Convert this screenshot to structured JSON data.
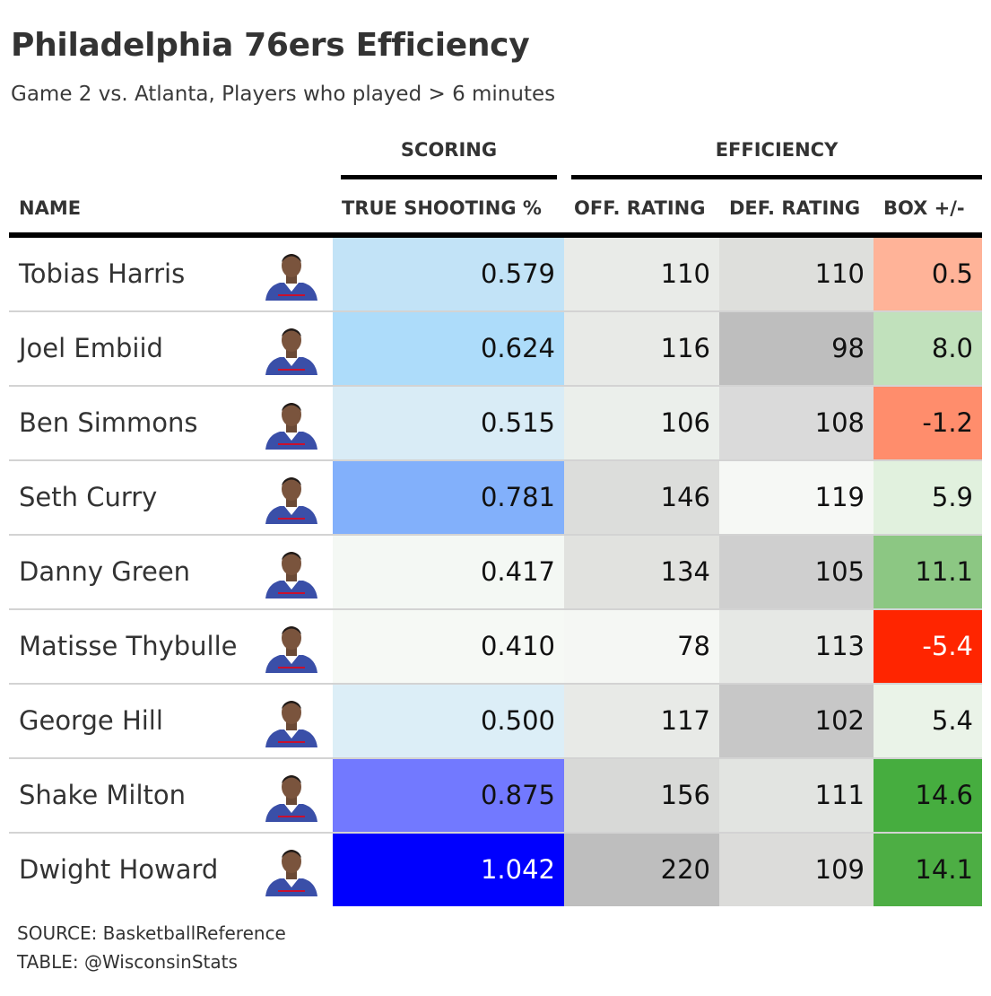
{
  "title": "Philadelphia 76ers Efficiency",
  "subtitle": "Game 2 vs. Atlanta, Players who played > 6 minutes",
  "spanners": {
    "scoring": "SCORING",
    "efficiency": "EFFICIENCY"
  },
  "columns": {
    "name": "NAME",
    "ts": "TRUE SHOOTING %",
    "off": "OFF. RATING",
    "def": "DEF. RATING",
    "box": "BOX +/-"
  },
  "source": {
    "line1": "SOURCE: BasketballReference",
    "line2": "TABLE: @WisconsinStats"
  },
  "chart_data": {
    "type": "table",
    "title": "Philadelphia 76ers Efficiency",
    "subtitle": "Game 2 vs. Atlanta, Players who played > 6 minutes",
    "columns": [
      "NAME",
      "TRUE SHOOTING %",
      "OFF. RATING",
      "DEF. RATING",
      "BOX +/-"
    ],
    "column_groups": [
      {
        "label": "SCORING",
        "columns": [
          "TRUE SHOOTING %"
        ]
      },
      {
        "label": "EFFICIENCY",
        "columns": [
          "OFF. RATING",
          "DEF. RATING",
          "BOX +/-"
        ]
      }
    ],
    "rows": [
      {
        "name": "Tobias Harris",
        "ts": "0.579",
        "off": "110",
        "def": "110",
        "box": "0.5",
        "colors": {
          "ts": "#c2e3f7",
          "off": "#e9ebe8",
          "def": "#dedfdc",
          "box": "#ffb398"
        }
      },
      {
        "name": "Joel Embiid",
        "ts": "0.624",
        "off": "116",
        "def": "98",
        "box": "8.0",
        "colors": {
          "ts": "#addcfa",
          "off": "#e8eae7",
          "def": "#bebebe",
          "box": "#c1e1bc"
        }
      },
      {
        "name": "Ben Simmons",
        "ts": "0.515",
        "off": "106",
        "def": "108",
        "box": "-1.2",
        "colors": {
          "ts": "#d9ecf6",
          "off": "#ebefeb",
          "def": "#dadada",
          "box": "#ff8d6c"
        }
      },
      {
        "name": "Seth Curry",
        "ts": "0.781",
        "off": "146",
        "def": "119",
        "box": "5.9",
        "colors": {
          "ts": "#82b0fb",
          "off": "#dcdddb",
          "def": "#f6f8f5",
          "box": "#e1f1de"
        }
      },
      {
        "name": "Danny Green",
        "ts": "0.417",
        "off": "134",
        "def": "105",
        "box": "11.1",
        "colors": {
          "ts": "#f4f8f4",
          "off": "#e1e2df",
          "def": "#cfcfcf",
          "box": "#8cc783"
        }
      },
      {
        "name": "Matisse Thybulle",
        "ts": "0.410",
        "off": "78",
        "def": "113",
        "box": "-5.4",
        "colors": {
          "ts": "#f6f9f5",
          "off": "#f5f7f4",
          "def": "#e6e8e5",
          "box": "#ff2500"
        }
      },
      {
        "name": "George Hill",
        "ts": "0.500",
        "off": "117",
        "def": "102",
        "box": "5.4",
        "colors": {
          "ts": "#dceef7",
          "off": "#e8eae7",
          "def": "#c7c7c7",
          "box": "#eaf3e8"
        }
      },
      {
        "name": "Shake Milton",
        "ts": "0.875",
        "off": "156",
        "def": "111",
        "box": "14.6",
        "colors": {
          "ts": "#7279ff",
          "off": "#d8d9d7",
          "def": "#e2e4e1",
          "box": "#46ad3f"
        }
      },
      {
        "name": "Dwight Howard",
        "ts": "1.042",
        "off": "220",
        "def": "109",
        "box": "14.1",
        "colors": {
          "ts": "#0000fe",
          "off": "#bebebe",
          "def": "#dcdcda",
          "box": "#4dae44"
        }
      }
    ]
  }
}
